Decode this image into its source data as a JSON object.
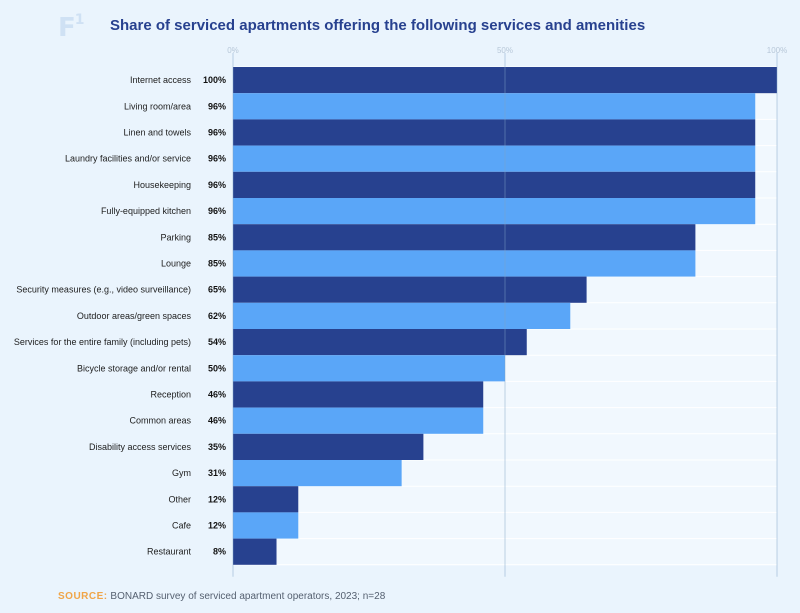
{
  "header": {
    "logo": "F",
    "logo_sup": "1",
    "title": "Share of serviced apartments offering the following services and amenities"
  },
  "footer": {
    "source_label": "SOURCE:",
    "source_text": "BONARD survey of serviced apartment operators, 2023; n=28"
  },
  "colors": {
    "dark_bar": "#27418f",
    "light_bar": "#5aa6f8",
    "row_line": "#ffffff",
    "grid": "#7fa3c6"
  },
  "chart_data": {
    "type": "bar",
    "orientation": "horizontal",
    "title": "Share of serviced apartments offering the following services and amenities",
    "xlim": [
      0,
      100
    ],
    "x_ticks": [
      "0%",
      "50%",
      "100%"
    ],
    "categories": [
      "Internet access",
      "Living room/area",
      "Linen and towels",
      "Laundry facilities and/or service",
      "Housekeeping",
      "Fully-equipped kitchen",
      "Parking",
      "Lounge",
      "Security measures (e.g., video surveillance)",
      "Outdoor areas/green spaces",
      "Services for the entire family (including pets)",
      "Bicycle storage and/or rental",
      "Reception",
      "Common areas",
      "Disability access services",
      "Gym",
      "Other",
      "Cafe",
      "Restaurant"
    ],
    "values": [
      100,
      96,
      96,
      96,
      96,
      96,
      85,
      85,
      65,
      62,
      54,
      50,
      46,
      46,
      35,
      31,
      12,
      12,
      8
    ],
    "value_labels": [
      "100%",
      "96%",
      "96%",
      "96%",
      "96%",
      "96%",
      "85%",
      "85%",
      "65%",
      "62%",
      "54%",
      "50%",
      "46%",
      "46%",
      "35%",
      "31%",
      "12%",
      "12%",
      "8%"
    ]
  }
}
